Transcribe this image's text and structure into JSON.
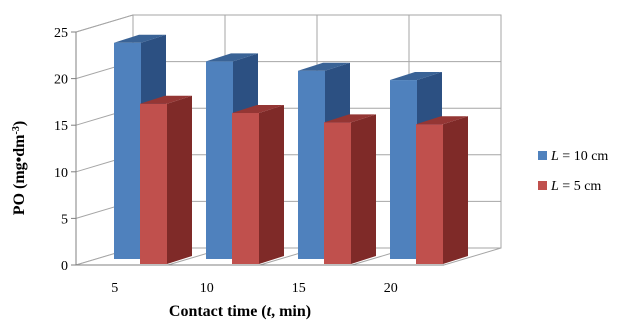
{
  "chart_data": {
    "type": "bar",
    "style": "3d-clustered-column",
    "categories": [
      "5",
      "10",
      "15",
      "20"
    ],
    "series": [
      {
        "name": "L = 10 cm",
        "name_italic": "L",
        "name_rest": " = 10 cm",
        "values": [
          23.2,
          21.2,
          20.2,
          19.2
        ],
        "color": "#4F81BD",
        "side_color": "#2C5082",
        "top_color": "#3A6396"
      },
      {
        "name": "L = 5 cm",
        "name_italic": "L",
        "name_rest": " = 5 cm",
        "values": [
          17.2,
          16.2,
          15.2,
          15.0
        ],
        "color": "#C0504D",
        "side_color": "#7F2A28",
        "top_color": "#943634"
      }
    ],
    "ylim": [
      0,
      25
    ],
    "yticks": [
      "0",
      "5",
      "10",
      "15",
      "20",
      "25"
    ],
    "ylabel": {
      "prefix": "PO (mg•dm",
      "sup": "-3",
      "suffix": ")"
    },
    "xlabel": {
      "prefix": "Contact time (",
      "italic": "t",
      "suffix": ", min)"
    },
    "grid": true,
    "legend": "right"
  }
}
